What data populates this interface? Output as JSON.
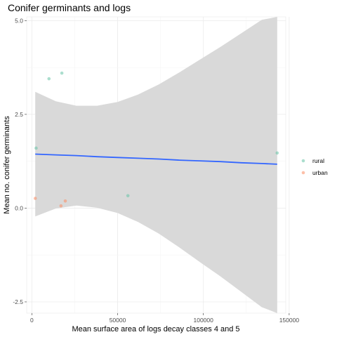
{
  "chart_data": {
    "type": "scatter",
    "title": "Conifer germinants and logs",
    "xlabel": "Mean surface area of logs decay classes 4 and 5",
    "ylabel": "Mean no. conifer germinants",
    "xlim": [
      -3000,
      148000
    ],
    "ylim": [
      -2.8,
      5.1
    ],
    "x_ticks": [
      0,
      50000,
      100000,
      150000
    ],
    "x_tick_labels": [
      "0",
      "50000",
      "100000",
      "150000"
    ],
    "y_ticks": [
      -2.5,
      0.0,
      2.5,
      5.0
    ],
    "y_tick_labels": [
      "-2.5",
      "0.0",
      "2.5",
      "5.0"
    ],
    "grid": true,
    "legend_position": "right",
    "series": [
      {
        "name": "rural",
        "color": "#66c2a5",
        "points": [
          {
            "x": 2500,
            "y": 1.6
          },
          {
            "x": 10000,
            "y": 3.45
          },
          {
            "x": 17500,
            "y": 3.6
          },
          {
            "x": 56000,
            "y": 0.33
          },
          {
            "x": 143000,
            "y": 1.47
          }
        ]
      },
      {
        "name": "urban",
        "color": "#fc8d62",
        "points": [
          {
            "x": 2000,
            "y": 0.26
          },
          {
            "x": 17000,
            "y": 0.06
          },
          {
            "x": 19500,
            "y": 0.19
          }
        ]
      }
    ],
    "fit": {
      "color": "#3366ff",
      "ribbon_color": "#d9d9d9",
      "x": [
        2000,
        14000,
        26000,
        38000,
        50000,
        62000,
        74000,
        86000,
        98000,
        110000,
        122000,
        134000,
        143000
      ],
      "y": [
        1.44,
        1.42,
        1.4,
        1.37,
        1.35,
        1.33,
        1.31,
        1.28,
        1.26,
        1.24,
        1.21,
        1.19,
        1.17
      ],
      "upper": [
        3.1,
        2.85,
        2.73,
        2.73,
        2.83,
        3.03,
        3.3,
        3.62,
        3.96,
        4.3,
        4.66,
        5.02,
        5.3
      ],
      "lower": [
        -0.22,
        -0.01,
        0.07,
        0.01,
        -0.13,
        -0.37,
        -0.68,
        -1.05,
        -1.44,
        -1.82,
        -2.23,
        -2.64,
        -2.96
      ]
    }
  }
}
